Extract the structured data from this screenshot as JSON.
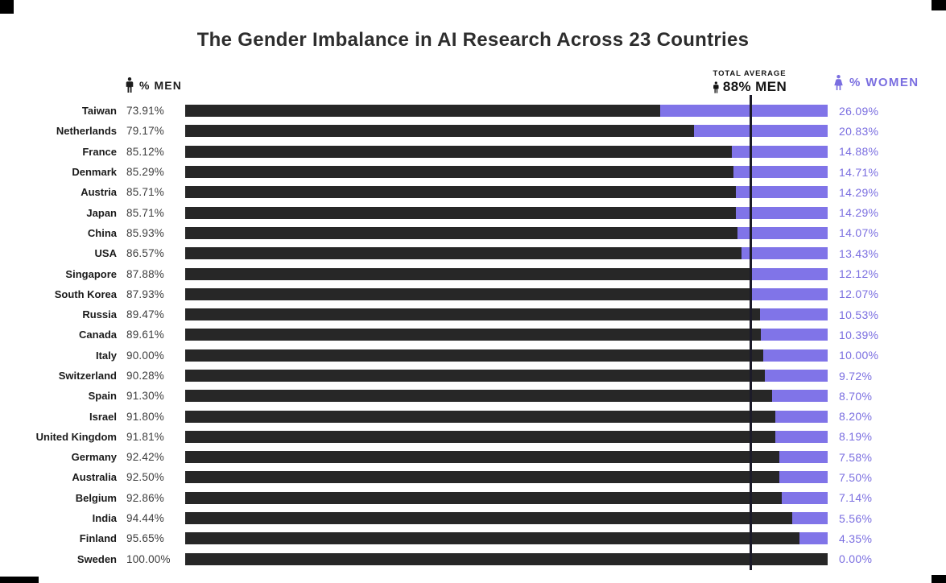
{
  "title": "The Gender Imbalance in AI Research Across 23 Countries",
  "legend": {
    "men_label": "% MEN",
    "women_label": "% WOMEN",
    "men_icon": "male-person-icon",
    "women_icon": "female-person-icon"
  },
  "average_annotation": {
    "line1": "TOTAL AVERAGE",
    "line2": "88% MEN",
    "value_percent": 88
  },
  "colors": {
    "men_bar": "#272727",
    "women_bar": "#8074e8",
    "women_text": "#7a6ee0",
    "dark_text": "#1d1d1d",
    "average_line": "#1c1b29"
  },
  "chart_data": {
    "type": "bar",
    "orientation": "horizontal",
    "stacked": true,
    "title": "The Gender Imbalance in AI Research Across 23 Countries",
    "x_range": [
      0,
      100
    ],
    "grid": false,
    "legend_position": "top",
    "series_names": [
      "% Men",
      "% Women"
    ],
    "average_line": {
      "label": "TOTAL AVERAGE 88% MEN",
      "value": 88
    },
    "rows": [
      {
        "country": "Taiwan",
        "men": 73.91,
        "women": 26.09,
        "men_label": "73.91%",
        "women_label": "26.09%"
      },
      {
        "country": "Netherlands",
        "men": 79.17,
        "women": 20.83,
        "men_label": "79.17%",
        "women_label": "20.83%"
      },
      {
        "country": "France",
        "men": 85.12,
        "women": 14.88,
        "men_label": "85.12%",
        "women_label": "14.88%"
      },
      {
        "country": "Denmark",
        "men": 85.29,
        "women": 14.71,
        "men_label": "85.29%",
        "women_label": "14.71%"
      },
      {
        "country": "Austria",
        "men": 85.71,
        "women": 14.29,
        "men_label": "85.71%",
        "women_label": "14.29%"
      },
      {
        "country": "Japan",
        "men": 85.71,
        "women": 14.29,
        "men_label": "85.71%",
        "women_label": "14.29%"
      },
      {
        "country": "China",
        "men": 85.93,
        "women": 14.07,
        "men_label": "85.93%",
        "women_label": "14.07%"
      },
      {
        "country": "USA",
        "men": 86.57,
        "women": 13.43,
        "men_label": "86.57%",
        "women_label": "13.43%"
      },
      {
        "country": "Singapore",
        "men": 87.88,
        "women": 12.12,
        "men_label": "87.88%",
        "women_label": "12.12%"
      },
      {
        "country": "South Korea",
        "men": 87.93,
        "women": 12.07,
        "men_label": "87.93%",
        "women_label": "12.07%"
      },
      {
        "country": "Russia",
        "men": 89.47,
        "women": 10.53,
        "men_label": "89.47%",
        "women_label": "10.53%"
      },
      {
        "country": "Canada",
        "men": 89.61,
        "women": 10.39,
        "men_label": "89.61%",
        "women_label": "10.39%"
      },
      {
        "country": "Italy",
        "men": 90.0,
        "women": 10.0,
        "men_label": "90.00%",
        "women_label": "10.00%"
      },
      {
        "country": "Switzerland",
        "men": 90.28,
        "women": 9.72,
        "men_label": "90.28%",
        "women_label": "9.72%"
      },
      {
        "country": "Spain",
        "men": 91.3,
        "women": 8.7,
        "men_label": "91.30%",
        "women_label": "8.70%"
      },
      {
        "country": "Israel",
        "men": 91.8,
        "women": 8.2,
        "men_label": "91.80%",
        "women_label": "8.20%"
      },
      {
        "country": "United Kingdom",
        "men": 91.81,
        "women": 8.19,
        "men_label": "91.81%",
        "women_label": "8.19%"
      },
      {
        "country": "Germany",
        "men": 92.42,
        "women": 7.58,
        "men_label": "92.42%",
        "women_label": "7.58%"
      },
      {
        "country": "Australia",
        "men": 92.5,
        "women": 7.5,
        "men_label": "92.50%",
        "women_label": "7.50%"
      },
      {
        "country": "Belgium",
        "men": 92.86,
        "women": 7.14,
        "men_label": "92.86%",
        "women_label": "7.14%"
      },
      {
        "country": "India",
        "men": 94.44,
        "women": 5.56,
        "men_label": "94.44%",
        "women_label": "5.56%"
      },
      {
        "country": "Finland",
        "men": 95.65,
        "women": 4.35,
        "men_label": "95.65%",
        "women_label": "4.35%"
      },
      {
        "country": "Sweden",
        "men": 100.0,
        "women": 0.0,
        "men_label": "100.00%",
        "women_label": "0.00%"
      }
    ]
  }
}
